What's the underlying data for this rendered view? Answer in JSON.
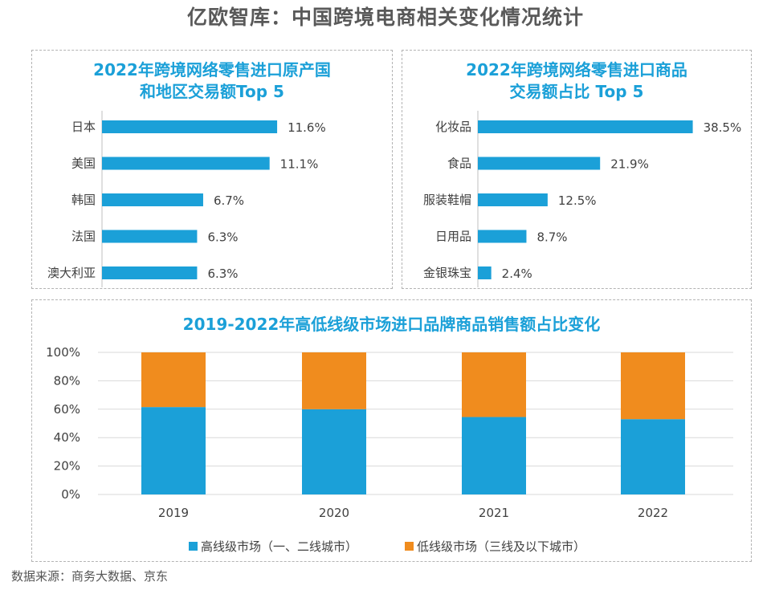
{
  "page": {
    "title": "亿欧智库：中国跨境电商相关变化情况统计",
    "source": "数据来源：商务大数据、京东"
  },
  "colors": {
    "blue": "#1ba0d8",
    "orange": "#f08c1e"
  },
  "chart_data": [
    {
      "type": "bar",
      "orientation": "horizontal",
      "title_lines": [
        "2022年跨境网络零售进口原产国",
        "和地区交易额Top 5"
      ],
      "categories": [
        "日本",
        "美国",
        "韩国",
        "法国",
        "澳大利亚"
      ],
      "values": [
        11.6,
        11.1,
        6.7,
        6.3,
        6.3
      ],
      "labels": [
        "11.6%",
        "11.1%",
        "6.7%",
        "6.3%",
        "6.3%"
      ],
      "unit": "%"
    },
    {
      "type": "bar",
      "orientation": "horizontal",
      "title_lines": [
        "2022年跨境网络零售进口商品",
        "交易额占比 Top 5"
      ],
      "categories": [
        "化妆品",
        "食品",
        "服装鞋帽",
        "日用品",
        "金银珠宝"
      ],
      "values": [
        38.5,
        21.9,
        12.5,
        8.7,
        2.4
      ],
      "labels": [
        "38.5%",
        "21.9%",
        "12.5%",
        "8.7%",
        "2.4%"
      ],
      "unit": "%"
    },
    {
      "type": "bar",
      "stacked": true,
      "title": "2019-2022年高低线级市场进口品牌商品销售额占比变化",
      "categories": [
        "2019",
        "2020",
        "2021",
        "2022"
      ],
      "series": [
        {
          "name": "高线级市场（一、二线城市）",
          "values": [
            61.5,
            60.0,
            54.5,
            53.0
          ]
        },
        {
          "name": "低线级市场（三线及以下城市）",
          "values": [
            38.5,
            40.0,
            45.5,
            47.0
          ]
        }
      ],
      "ylim": [
        0,
        100
      ],
      "yticks": [
        "0%",
        "20%",
        "40%",
        "60%",
        "80%",
        "100%"
      ],
      "grid": true,
      "legend_position": "bottom"
    }
  ]
}
